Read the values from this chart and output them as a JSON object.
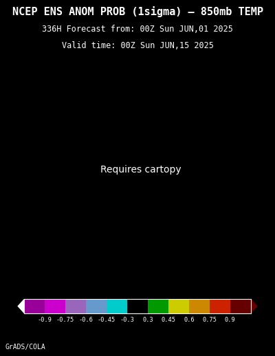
{
  "title_line1": "NCEP ENS ANOM PROB (1sigma) – 850mb TEMP",
  "title_line2": "336H Forecast from: 00Z Sun JUN,01 2025",
  "title_line3": "Valid time: 00Z Sun JUN,15 2025",
  "colorbar_labels": [
    "-0.9",
    "-0.75",
    "-0.6",
    "-0.45",
    "-0.3",
    "0.3",
    "0.45",
    "0.6",
    "0.75",
    "0.9"
  ],
  "cbar_colors_full": [
    "#990099",
    "#cc00cc",
    "#9966bb",
    "#6699cc",
    "#00cccc",
    "#000000",
    "#009900",
    "#cccc00",
    "#cc8800",
    "#cc2200",
    "#660000"
  ],
  "background_color": "#000000",
  "text_color": "#ffffff",
  "credit": "GrADS/COLA",
  "map_extent": [
    -180,
    0,
    10,
    85
  ],
  "title_fontsize": 11,
  "subtitle_fontsize": 8.5
}
